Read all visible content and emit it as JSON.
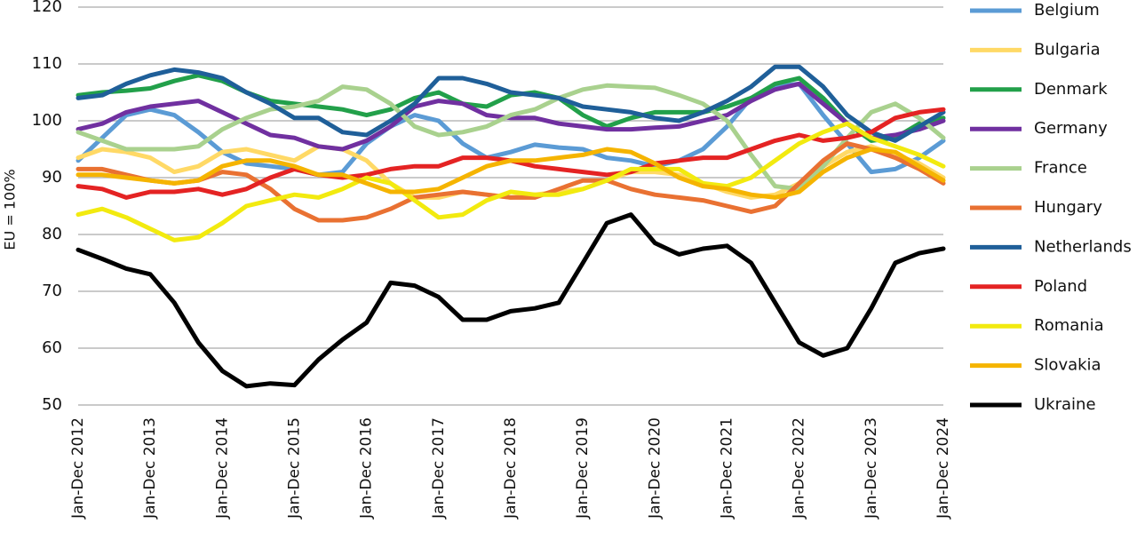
{
  "chart_data": {
    "type": "line",
    "y_label": "EU = 100%",
    "categories": [
      "Jan-Dec 2012",
      null,
      null,
      "Jan-Dec 2013",
      null,
      null,
      "Jan-Dec 2014",
      null,
      null,
      "Jan-Dec 2015",
      null,
      null,
      "Jan-Dec 2016",
      null,
      null,
      "Jan-Dec 2017",
      null,
      null,
      "Jan-Dec 2018",
      null,
      null,
      "Jan-Dec 2019",
      null,
      null,
      "Jan-Dec 2020",
      null,
      null,
      "Jan-Dec 2021",
      null,
      null,
      "Jan-Dec 2022",
      null,
      null,
      "Jan-Dec 2023",
      null,
      null,
      "Jan-Dec 2024"
    ],
    "ylim": [
      50,
      120
    ],
    "yticks": [
      50,
      60,
      70,
      80,
      90,
      100,
      110,
      120
    ],
    "grid": true,
    "legend": "right",
    "series": [
      {
        "name": "Belgium",
        "color": "#5b9bd5",
        "values": [
          93,
          97,
          101,
          102,
          101,
          98,
          94.5,
          92.5,
          92,
          91.5,
          90.5,
          91,
          96,
          99,
          101,
          100,
          96,
          93.5,
          94.5,
          95.8,
          95.3,
          95,
          93.5,
          93,
          92,
          93,
          95,
          99,
          104,
          106,
          106.5,
          101,
          96,
          91,
          91.5,
          93.5,
          96.5
        ]
      },
      {
        "name": "Bulgaria",
        "color": "#ffd966",
        "values": [
          93.5,
          95,
          94.5,
          93.5,
          91,
          92,
          94.5,
          95,
          94,
          93,
          95.5,
          95,
          93,
          89,
          86.5,
          86.5,
          87.5,
          87,
          86.5,
          87,
          87.5,
          88,
          89.5,
          91,
          91,
          90.5,
          89,
          87.5,
          86.5,
          87,
          89,
          92,
          94.5,
          95.5,
          94,
          92.5,
          90
        ]
      },
      {
        "name": "Denmark",
        "color": "#22a04a",
        "values": [
          104.5,
          105,
          105.3,
          105.7,
          107,
          108,
          107,
          105,
          103.5,
          103,
          102.5,
          102,
          101,
          102,
          104,
          105,
          103,
          102.5,
          104.5,
          105,
          104,
          101,
          99,
          100.5,
          101.5,
          101.5,
          101.5,
          102.5,
          104,
          106.5,
          107.5,
          104,
          99.5,
          96.5,
          97,
          99.5,
          100.5
        ]
      },
      {
        "name": "Germany",
        "color": "#7030a0",
        "values": [
          98.5,
          99.5,
          101.5,
          102.5,
          103,
          103.5,
          101.5,
          99.5,
          97.5,
          97,
          95.5,
          95,
          96.5,
          99,
          102.5,
          103.5,
          103,
          101,
          100.5,
          100.5,
          99.5,
          99,
          98.5,
          98.5,
          98.8,
          99,
          100,
          101,
          103.5,
          105.5,
          106.5,
          103,
          99.5,
          97,
          97.5,
          98.5,
          100
        ]
      },
      {
        "name": "France",
        "color": "#a9d18e",
        "values": [
          98,
          96.5,
          95,
          95,
          95,
          95.5,
          98.5,
          100.5,
          102,
          102.5,
          103.5,
          106,
          105.5,
          103,
          99,
          97.5,
          98,
          99,
          101,
          102,
          104,
          105.5,
          106.2,
          106,
          105.8,
          104.5,
          103,
          100,
          94,
          88.5,
          88,
          92,
          97,
          101.5,
          103,
          100.5,
          97
        ]
      },
      {
        "name": "Hungary",
        "color": "#e97132",
        "values": [
          91.5,
          91.5,
          90.5,
          89.5,
          89,
          89.5,
          91,
          90.5,
          88,
          84.5,
          82.5,
          82.5,
          83,
          84.5,
          86.5,
          87,
          87.5,
          87,
          86.5,
          86.5,
          88,
          89.5,
          89.5,
          88,
          87,
          86.5,
          86,
          85,
          84,
          85,
          89,
          93,
          96,
          95,
          93.5,
          91.5,
          89
        ]
      },
      {
        "name": "Netherlands",
        "color": "#1f5f99",
        "values": [
          104,
          104.5,
          106.5,
          108,
          109,
          108.5,
          107.5,
          105,
          103,
          100.5,
          100.5,
          98,
          97.5,
          100,
          103,
          107.5,
          107.5,
          106.5,
          105,
          104.5,
          104,
          102.5,
          102,
          101.5,
          100.5,
          100,
          101.5,
          103.5,
          106,
          109.5,
          109.5,
          106,
          101,
          98,
          96.5,
          99,
          101.5
        ]
      },
      {
        "name": "Poland",
        "color": "#e42323",
        "values": [
          88.5,
          88,
          86.5,
          87.5,
          87.5,
          88,
          87,
          88,
          90,
          91.5,
          90.5,
          90,
          90.5,
          91.5,
          92,
          92,
          93.5,
          93.5,
          93,
          92,
          91.5,
          91,
          90.5,
          91,
          92.5,
          93,
          93.5,
          93.5,
          95,
          96.5,
          97.5,
          96.5,
          97,
          98,
          100.5,
          101.5,
          102
        ]
      },
      {
        "name": "Romania",
        "color": "#f2ea0f",
        "values": [
          83.5,
          84.5,
          83,
          81,
          79,
          79.5,
          82,
          85,
          86,
          87,
          86.5,
          88,
          90,
          89,
          86,
          83,
          83.5,
          86,
          87.5,
          87,
          87,
          88,
          89.5,
          91.5,
          91.5,
          91.5,
          89,
          88.5,
          90,
          93,
          96,
          98,
          99.5,
          97,
          95.5,
          94,
          92
        ]
      },
      {
        "name": "Slovakia",
        "color": "#f5b400",
        "values": [
          90.5,
          90.5,
          90,
          89.5,
          89,
          89.5,
          92,
          93,
          93,
          92,
          90.5,
          90.5,
          89,
          87.5,
          87.5,
          88,
          90,
          92,
          93,
          93,
          93.5,
          94,
          95,
          94.5,
          92.5,
          90,
          88.5,
          88,
          87,
          86.5,
          87.5,
          91,
          93.5,
          95,
          94.5,
          92,
          89.5
        ]
      },
      {
        "name": "Ukraine",
        "color": "#000000",
        "values": [
          77.3,
          75.7,
          74,
          73,
          68,
          61,
          56,
          53.3,
          53.8,
          53.5,
          58,
          61.5,
          64.5,
          71.5,
          71,
          69,
          65,
          65,
          66.5,
          67,
          68,
          75,
          82,
          83.5,
          78.5,
          76.5,
          77.5,
          78,
          75,
          68,
          61,
          58.7,
          60,
          67,
          75,
          76.7,
          77.5
        ]
      }
    ]
  }
}
